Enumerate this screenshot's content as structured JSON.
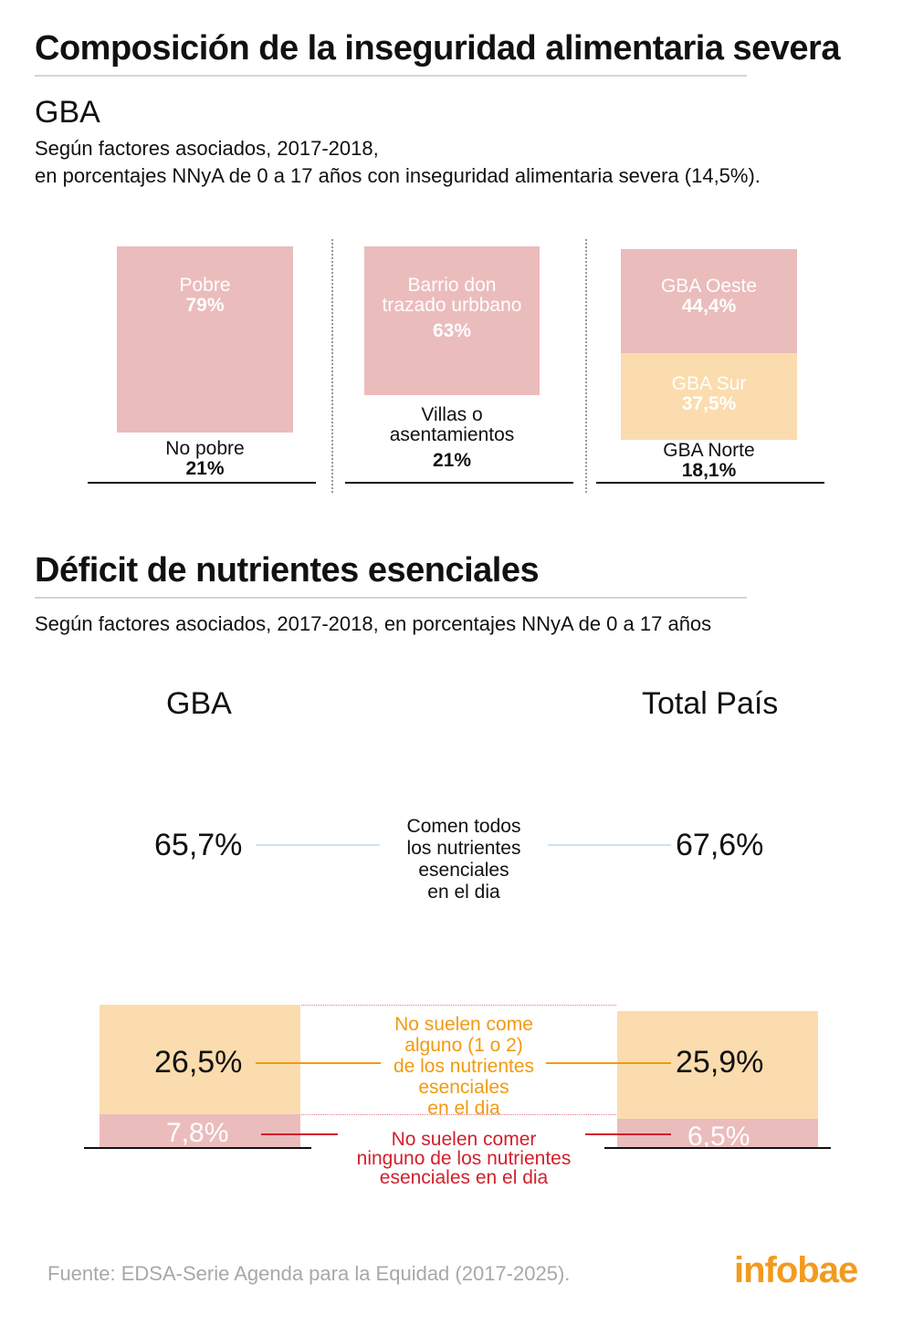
{
  "section1": {
    "title": "Composición de la inseguridad alimentaria severa",
    "region": "GBA",
    "subtitle_line1": "Según factores asociados, 2017-2018,",
    "subtitle_line2": "en porcentajes NNyA de 0 a 17 años con inseguridad alimentaria severa (14,5%)."
  },
  "section2": {
    "title": "Déficit de nutrientes esenciales",
    "subtitle": "Según factores asociados, 2017-2018,  en porcentajes NNyA de 0 a 17 años",
    "col_left": "GBA",
    "col_right": "Total País",
    "row_all_label": [
      "Comen todos",
      "los nutrientes",
      "esenciales",
      "en el dia"
    ],
    "row_some_label": [
      "No suelen come",
      "alguno (1 o 2)",
      "de los nutrientes",
      "esenciales",
      "en el dia"
    ],
    "row_none_label": [
      "No suelen comer",
      "ninguno de los nutrientes",
      "esenciales en el dia"
    ]
  },
  "footer": {
    "source": "Fuente: EDSA-Serie Agenda para la Equidad (2017-2025).",
    "logo": "infobae"
  },
  "colors": {
    "pink": "#ebbcbc",
    "peach": "#fbdcae",
    "line_blue": "#cfe3f2",
    "line_orange": "#f29a0e",
    "line_red": "#d21f2c",
    "orange_text": "#f29a0e",
    "red_text": "#d21f2c"
  },
  "chart_data": [
    {
      "type": "bar",
      "stacked": true,
      "panel": "pobreza",
      "segments": [
        {
          "name": "Pobre",
          "value": 79,
          "value_label": "79%",
          "color": "#ebbcbc"
        },
        {
          "name": "No pobre",
          "value": 21,
          "value_label": "21%",
          "color": "none"
        }
      ]
    },
    {
      "type": "bar",
      "stacked": true,
      "panel": "barrio",
      "segments": [
        {
          "name": "Barrio don trazado urbbano",
          "name_lines": [
            "Barrio don",
            "trazado urbbano"
          ],
          "value": 63,
          "value_label": "63%",
          "color": "#ebbcbc"
        },
        {
          "name": "Villas o asentamientos",
          "name_lines": [
            "Villas o",
            "asentamientos"
          ],
          "value": 21,
          "value_label": "21%",
          "color": "none"
        }
      ]
    },
    {
      "type": "bar",
      "stacked": true,
      "panel": "region",
      "segments": [
        {
          "name": "GBA Oeste",
          "value": 44.4,
          "value_label": "44,4%",
          "color": "#ebbcbc"
        },
        {
          "name": "GBA Sur",
          "value": 37.5,
          "value_label": "37,5%",
          "color": "#fbdcae"
        },
        {
          "name": "GBA Norte",
          "value": 18.1,
          "value_label": "18,1%",
          "color": "none"
        }
      ]
    },
    {
      "type": "bar",
      "stacked": true,
      "panel": "nutrientes",
      "categories": [
        "GBA",
        "Total País"
      ],
      "series": [
        {
          "name": "Comen todos los nutrientes esenciales en el dia",
          "values": [
            65.7,
            67.6
          ],
          "value_labels": [
            "65,7%",
            "67,6%"
          ]
        },
        {
          "name": "No suelen come alguno (1 o 2) de los nutrientes esenciales en el dia",
          "values": [
            26.5,
            25.9
          ],
          "value_labels": [
            "26,5%",
            "25,9%"
          ]
        },
        {
          "name": "No suelen comer ninguno de los nutrientes esenciales en el dia",
          "values": [
            7.8,
            6.5
          ],
          "value_labels": [
            "7,8%",
            "6,5%"
          ]
        }
      ]
    }
  ]
}
